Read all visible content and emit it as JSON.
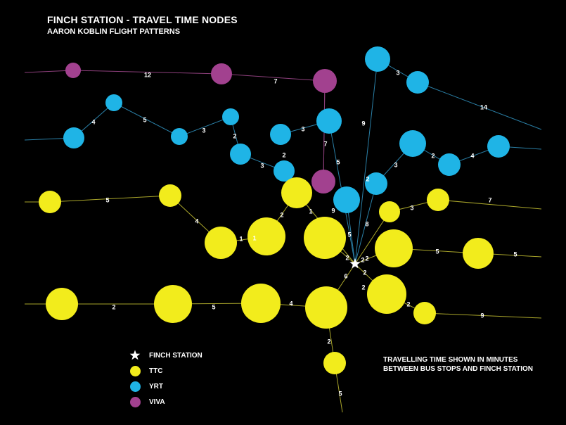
{
  "title": "FINCH STATION - TRAVEL TIME NODES",
  "subtitle": "AARON KOBLIN FLIGHT PATTERNS",
  "note": [
    "TRAVELLING TIME SHOWN IN MINUTES",
    "BETWEEN BUS STOPS AND FINCH STATION"
  ],
  "colors": {
    "background": "#000000",
    "ttc": "#f2ec1c",
    "yrt": "#1fb4e6",
    "viva": "#a2418f",
    "station": "#ffffff",
    "ttc_line": "#a9a52a",
    "yrt_line": "#2a7fa6",
    "viva_line": "#8c3f7b"
  },
  "legend": [
    {
      "label": "FINCH STATION",
      "marker": "star-icon",
      "color": "#ffffff"
    },
    {
      "label": "TTC",
      "marker": "dot",
      "color": "#f2ec1c"
    },
    {
      "label": "YRT",
      "marker": "dot",
      "color": "#1fb4e6"
    },
    {
      "label": "VIVA",
      "marker": "dot",
      "color": "#a2418f"
    }
  ],
  "edge_labels": [
    "12",
    "7",
    "3",
    "14",
    "4",
    "5",
    "3",
    "2",
    "3",
    "9",
    "2",
    "3",
    "7",
    "5",
    "2",
    "4",
    "2",
    "3",
    "5",
    "9",
    "1",
    "2",
    "4",
    "1",
    "3",
    "7",
    "5",
    "8",
    "1",
    "5",
    "2",
    "2",
    "2",
    "5",
    "6",
    "2",
    "2",
    "5",
    "4",
    "2",
    "2",
    "9",
    "2",
    "5"
  ]
}
